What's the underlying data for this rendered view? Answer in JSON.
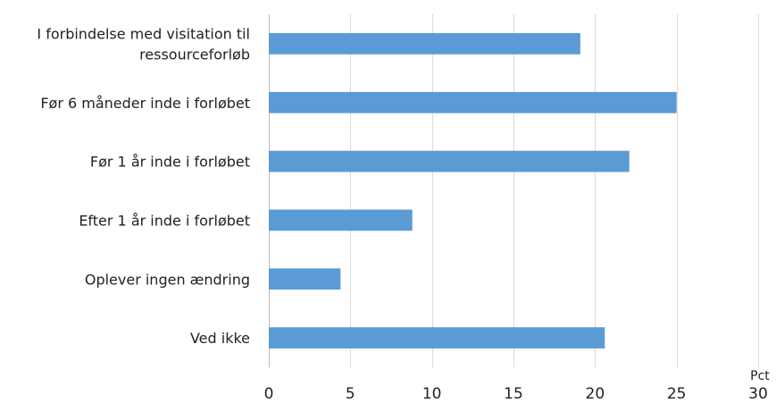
{
  "chart_data": {
    "type": "bar",
    "orientation": "horizontal",
    "categories": [
      [
        "I forbindelse med visitation til",
        "ressourceforløb"
      ],
      [
        "Før 6 måneder inde i forløbet"
      ],
      [
        "Før 1 år inde i forløbet"
      ],
      [
        "Efter 1 år inde i forløbet"
      ],
      [
        "Oplever ingen ændring"
      ],
      [
        "Ved ikke"
      ]
    ],
    "values": [
      19.1,
      25.0,
      22.1,
      8.8,
      4.4,
      20.6
    ],
    "xlim": [
      0,
      30
    ],
    "xticks": [
      0,
      5,
      10,
      15,
      20,
      25,
      30
    ],
    "xlabel": "Pct",
    "grid": "vertical",
    "color": "#5b9bd5"
  }
}
